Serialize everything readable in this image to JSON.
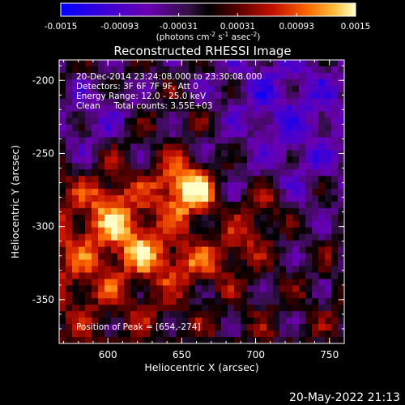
{
  "colorbar": {
    "ticks": [
      "-0.0015",
      "-0.00093",
      "-0.00031",
      "0.00031",
      "0.00093",
      "0.0015"
    ],
    "units_main": "(photons cm",
    "units_exp1": "-2",
    "units_mid": " s",
    "units_exp2": "-1",
    "units_mid2": " asec",
    "units_exp3": "-2",
    "units_end": ")"
  },
  "chart_data": {
    "type": "heatmap",
    "title": "Reconstructed RHESSI Image",
    "xlabel": "Heliocentric X (arcsec)",
    "ylabel": "Heliocentric Y (arcsec)",
    "xlim": [
      567,
      760
    ],
    "ylim": [
      -380,
      -186
    ],
    "xticks": [
      600,
      650,
      700,
      750
    ],
    "yticks": [
      -200,
      -250,
      -300,
      -350
    ],
    "value_range": [
      -0.0015,
      0.0015
    ],
    "annotations": [
      "20-Dec-2014 23:24:08.000 to 23:30:08.000",
      "Detectors: 3F 6F 7F 9F, Att 0",
      "Energy Range: 12.0 - 25.0 keV",
      "Clean     Total counts: 3.55E+03"
    ],
    "peak_label": "Position of Peak = [654,-274]",
    "peak": [
      654,
      -274
    ]
  },
  "footer": {
    "timestamp": "20-May-2022 21:13"
  }
}
